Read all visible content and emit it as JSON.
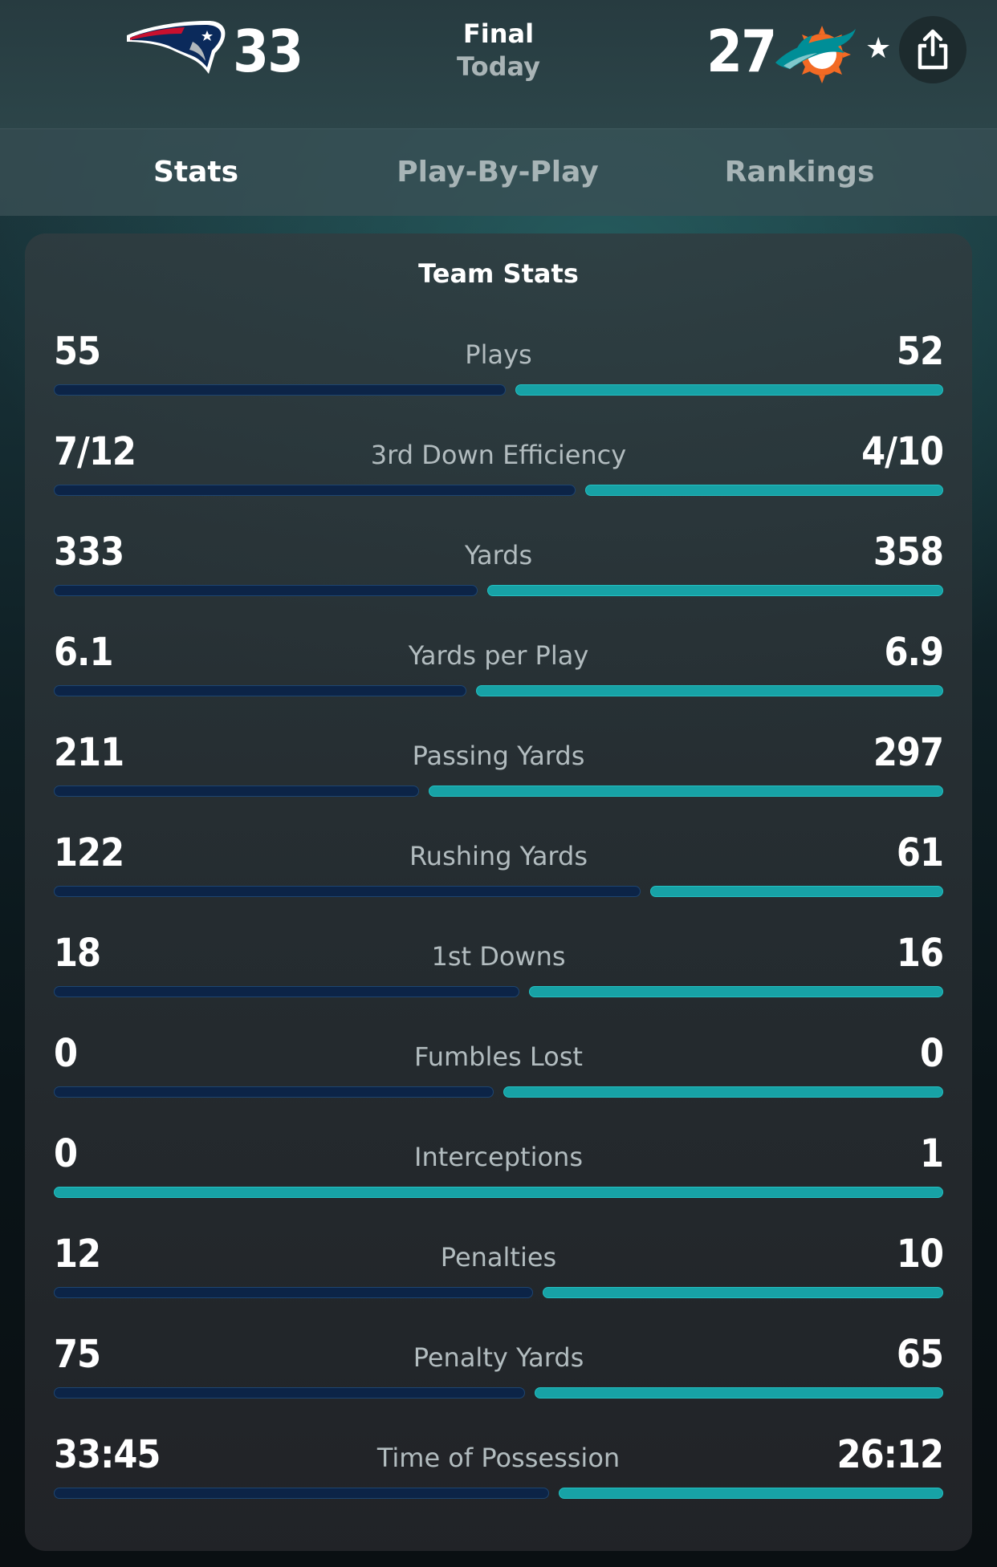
{
  "header": {
    "home": {
      "team_icon": "patriots-logo-icon",
      "score": "33"
    },
    "away": {
      "team_icon": "dolphins-logo-icon",
      "score": "27"
    },
    "status": "Final",
    "date": "Today",
    "favorite_icon": "star-icon",
    "share_icon": "share-icon"
  },
  "tabs": [
    {
      "label": "Stats",
      "active": true
    },
    {
      "label": "Play-By-Play",
      "active": false
    },
    {
      "label": "Rankings",
      "active": false
    }
  ],
  "team_stats": {
    "title": "Team Stats",
    "colors": {
      "home": "#0c2447",
      "away": "#17a2a6"
    },
    "rows": [
      {
        "label": "Plays",
        "home": "55",
        "away": "52",
        "home_share": 0.514
      },
      {
        "label": "3rd Down Efficiency",
        "home": "7/12",
        "away": "4/10",
        "home_share": 0.593
      },
      {
        "label": "Yards",
        "home": "333",
        "away": "358",
        "home_share": 0.482
      },
      {
        "label": "Yards per Play",
        "home": "6.1",
        "away": "6.9",
        "home_share": 0.469
      },
      {
        "label": "Passing Yards",
        "home": "211",
        "away": "297",
        "home_share": 0.415
      },
      {
        "label": "Rushing Yards",
        "home": "122",
        "away": "61",
        "home_share": 0.667
      },
      {
        "label": "1st Downs",
        "home": "18",
        "away": "16",
        "home_share": 0.529
      },
      {
        "label": "Fumbles Lost",
        "home": "0",
        "away": "0",
        "home_share": 0.5
      },
      {
        "label": "Interceptions",
        "home": "0",
        "away": "1",
        "home_share": 0
      },
      {
        "label": "Penalties",
        "home": "12",
        "away": "10",
        "home_share": 0.545
      },
      {
        "label": "Penalty Yards",
        "home": "75",
        "away": "65",
        "home_share": 0.536
      },
      {
        "label": "Time of Possession",
        "home": "33:45",
        "away": "26:12",
        "home_share": 0.563
      }
    ]
  }
}
